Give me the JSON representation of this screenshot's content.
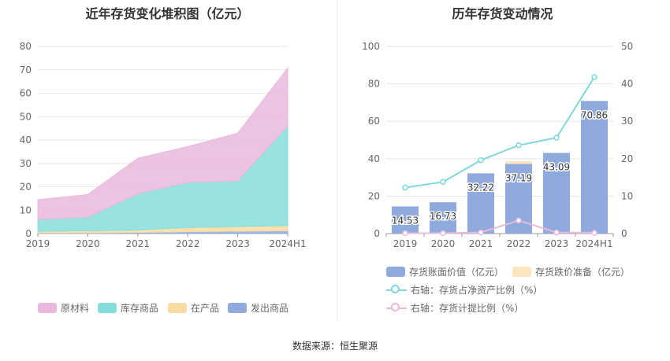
{
  "left_chart": {
    "title": "近年存货变化堆积图（亿元）",
    "categories": [
      "2019",
      "2020",
      "2021",
      "2022",
      "2023",
      "2024H1"
    ],
    "y_ticks": [
      "0",
      "10",
      "20",
      "30",
      "40",
      "50",
      "60",
      "70",
      "80"
    ]
  },
  "right_chart": {
    "title": "历年存货变动情况",
    "categories": [
      "2019",
      "2020",
      "2021",
      "2022",
      "2023",
      "2024H1"
    ],
    "y_left_ticks": [
      "0",
      "20",
      "40",
      "60",
      "80",
      "100"
    ],
    "y_right_ticks": [
      "0",
      "10",
      "20",
      "30",
      "40",
      "50"
    ]
  },
  "legend_left": [
    {
      "label": "原材料",
      "color": "#e9b8dc"
    },
    {
      "label": "库存商品",
      "color": "#86dedb"
    },
    {
      "label": "在产品",
      "color": "#fbdca0"
    },
    {
      "label": "发出商品",
      "color": "#8faadc"
    }
  ],
  "legend_right": {
    "bar_book": {
      "label": "存货账面价值（亿元）",
      "color": "#8faadc"
    },
    "bar_reserve": {
      "label": "存货跌价准备（亿元）",
      "color": "#fde5c0"
    },
    "line_ratio": {
      "label": "右轴：存货占净资产比例（%）",
      "color": "#80d8dc"
    },
    "line_provision": {
      "label": "右轴：存货计提比例（%）",
      "color": "#e9b8dc"
    }
  },
  "source": "数据来源：恒生聚源",
  "chart_data": [
    {
      "type": "area",
      "stacked": true,
      "title": "近年存货变化堆积图（亿元）",
      "categories": [
        "2019",
        "2020",
        "2021",
        "2022",
        "2023",
        "2024H1"
      ],
      "ylim": [
        0,
        80
      ],
      "grid": true,
      "legend_position": "bottom",
      "series": [
        {
          "name": "发出商品",
          "color": "#8faadc",
          "values": [
            0.3,
            0.3,
            0.5,
            0.8,
            1.0,
            1.2
          ]
        },
        {
          "name": "在产品",
          "color": "#fbdca0",
          "values": [
            0.7,
            0.9,
            1.0,
            1.8,
            2.0,
            2.2
          ]
        },
        {
          "name": "库存商品",
          "color": "#86dedb",
          "values": [
            5.0,
            5.8,
            15.5,
            19.3,
            19.5,
            42.6
          ]
        },
        {
          "name": "原材料",
          "color": "#e9b8dc",
          "values": [
            8.5,
            9.7,
            15.2,
            15.3,
            20.4,
            24.8
          ]
        }
      ]
    },
    {
      "type": "bar",
      "title": "历年存货变动情况",
      "categories": [
        "2019",
        "2020",
        "2021",
        "2022",
        "2023",
        "2024H1"
      ],
      "ylim": [
        0,
        100
      ],
      "y2lim": [
        0,
        50
      ],
      "grid": true,
      "legend_position": "bottom",
      "series": [
        {
          "name": "存货账面价值（亿元）",
          "color": "#8faadc",
          "axis": "left",
          "type": "bar",
          "stacked": true,
          "values": [
            14.53,
            16.73,
            32.22,
            37.19,
            43.09,
            70.86
          ],
          "labels": [
            "14.53",
            "16.73",
            "32.22",
            "37.19",
            "43.09",
            "70.86"
          ]
        },
        {
          "name": "存货跌价准备（亿元）",
          "color": "#fde5c0",
          "axis": "left",
          "type": "bar",
          "stacked": true,
          "values": [
            0.0,
            0.0,
            0.1,
            1.5,
            0.1,
            0.1
          ]
        },
        {
          "name": "右轴：存货占净资产比例（%）",
          "color": "#80d8dc",
          "axis": "right",
          "type": "line",
          "values": [
            12.3,
            13.8,
            19.6,
            23.6,
            25.6,
            41.8
          ]
        },
        {
          "name": "右轴：存货计提比例（%）",
          "color": "#e9b8dc",
          "axis": "right",
          "type": "line",
          "values": [
            0.1,
            0.1,
            0.3,
            3.5,
            0.3,
            0.2
          ]
        }
      ]
    }
  ]
}
